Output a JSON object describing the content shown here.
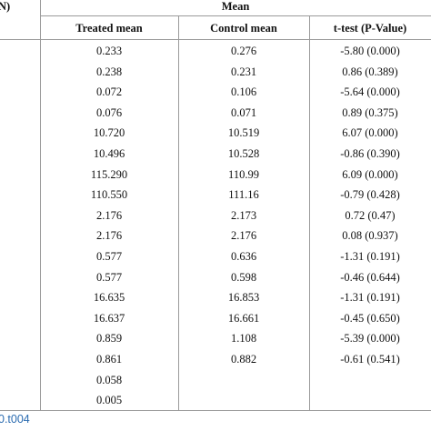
{
  "table": {
    "left_fragment": "N)",
    "group_header": "Mean",
    "columns": [
      "Treated mean",
      "Control mean",
      "t-test (P-Value)"
    ],
    "rows": [
      [
        "0.233",
        "0.276",
        "-5.80 (0.000)"
      ],
      [
        "0.238",
        "0.231",
        "0.86 (0.389)"
      ],
      [
        "0.072",
        "0.106",
        "-5.64 (0.000)"
      ],
      [
        "0.076",
        "0.071",
        "0.89 (0.375)"
      ],
      [
        "10.720",
        "10.519",
        "6.07 (0.000)"
      ],
      [
        "10.496",
        "10.528",
        "-0.86 (0.390)"
      ],
      [
        "115.290",
        "110.99",
        "6.09 (0.000)"
      ],
      [
        "110.550",
        "111.16",
        "-0.79 (0.428)"
      ],
      [
        "2.176",
        "2.173",
        "0.72 (0.47)"
      ],
      [
        "2.176",
        "2.176",
        "0.08 (0.937)"
      ],
      [
        "0.577",
        "0.636",
        "-1.31 (0.191)"
      ],
      [
        "0.577",
        "0.598",
        "-0.46 (0.644)"
      ],
      [
        "16.635",
        "16.853",
        "-1.31 (0.191)"
      ],
      [
        "16.637",
        "16.661",
        "-0.45 (0.650)"
      ],
      [
        "0.859",
        "1.108",
        "-5.39 (0.000)"
      ],
      [
        "0.861",
        "0.882",
        "-0.61 (0.541)"
      ],
      [
        "0.058",
        "",
        ""
      ],
      [
        "0.005",
        "",
        ""
      ]
    ]
  },
  "footer_link_fragment": "0.t004",
  "colors": {
    "rule": "#9a9a9a",
    "link": "#2a6bb0"
  }
}
